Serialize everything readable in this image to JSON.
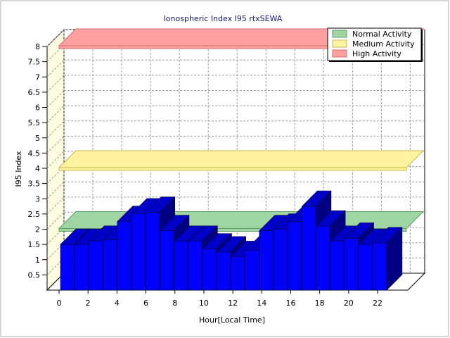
{
  "chart_data": {
    "type": "bar",
    "title": "Ionospheric Index I95 rtxSEWA",
    "xlabel": "Hour[Local Time]",
    "ylabel": "I95 Index",
    "ylim": [
      0,
      8
    ],
    "y_ticks": [
      "0.5",
      "1",
      "1.5",
      "2",
      "2.5",
      "3",
      "3.5",
      "4",
      "4.5",
      "5",
      "5.5",
      "6",
      "6.5",
      "7",
      "7.5",
      "8"
    ],
    "x_ticks": [
      "0",
      "2",
      "4",
      "6",
      "8",
      "10",
      "12",
      "14",
      "16",
      "18",
      "20",
      "22"
    ],
    "grid": true,
    "legend_position": "top-right",
    "bar_color": "#0000ff",
    "categories": [
      0,
      1,
      2,
      3,
      4,
      5,
      6,
      7,
      8,
      9,
      10,
      11,
      12,
      13,
      14,
      15,
      16,
      17,
      18,
      19,
      20,
      21,
      22
    ],
    "values": [
      1.5,
      1.5,
      1.6,
      1.65,
      2.25,
      2.5,
      2.55,
      1.95,
      1.6,
      1.6,
      1.35,
      1.25,
      1.1,
      1.3,
      1.95,
      2.0,
      2.25,
      2.75,
      2.1,
      1.6,
      1.7,
      1.5,
      1.55
    ],
    "bands": [
      {
        "name": "Normal Activity",
        "y": 2.0,
        "color": "#9fd4a3",
        "stroke": "#5aa060"
      },
      {
        "name": "Medium Activity",
        "y": 4.0,
        "color": "#fff3a0",
        "stroke": "#c8b850"
      },
      {
        "name": "High Activity",
        "y": 8.0,
        "color": "#ffa0a0",
        "stroke": "#d07070"
      }
    ]
  }
}
